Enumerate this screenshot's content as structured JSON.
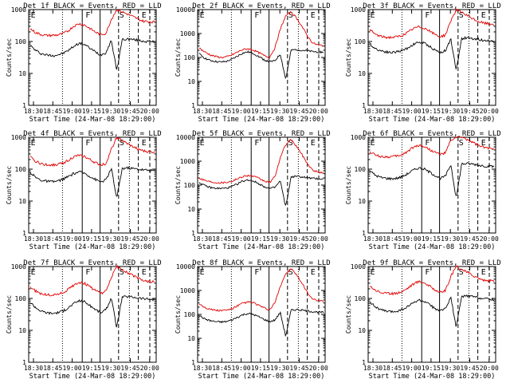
{
  "colors": {
    "events": "#000000",
    "lld": "#e00000",
    "background": "#ffffff"
  },
  "chart_data": [
    {
      "type": "line",
      "title": "Det 1f BLACK = Events, RED = LLD",
      "xlabel": "Start Time (24-Mar-08 18:29:00)",
      "ylabel": "Counts/sec",
      "yscale": "log",
      "ylim": [
        1,
        1000
      ],
      "yticks": [
        "1",
        "10",
        "100",
        "1000"
      ],
      "xticks": [
        "18:30",
        "18:45",
        "19:00",
        "19:15",
        "19:30",
        "19:45",
        "20:00"
      ],
      "grid": false,
      "markers": [
        "E",
        "F",
        "S",
        "E"
      ],
      "series": [
        {
          "name": "Events",
          "color": "#000000",
          "values": [
            75,
            52,
            42,
            38,
            36,
            38,
            42,
            52,
            70,
            88,
            82,
            62,
            48,
            38,
            45,
            110,
            12,
            115,
            120,
            115,
            110,
            102,
            100,
            98
          ]
        },
        {
          "name": "LLD",
          "color": "#e00000",
          "values": [
            250,
            190,
            165,
            155,
            155,
            160,
            175,
            215,
            300,
            360,
            330,
            260,
            200,
            165,
            180,
            500,
            1000,
            850,
            720,
            600,
            500,
            430,
            420,
            410
          ]
        }
      ]
    },
    {
      "type": "line",
      "title": "Det 2f BLACK = Events, RED = LLD",
      "xlabel": "Start Time (24-Mar-08 18:29:00)",
      "ylabel": "Counts/sec",
      "yscale": "log",
      "ylim": [
        1,
        10000
      ],
      "yticks": [
        "1",
        "10",
        "100",
        "1000",
        "10000"
      ],
      "xticks": [
        "18:30",
        "18:45",
        "19:00",
        "19:15",
        "19:30",
        "19:45",
        "20:00"
      ],
      "grid": false,
      "markers": [
        "E",
        "F",
        "S",
        "E"
      ],
      "series": [
        {
          "name": "Events",
          "color": "#000000",
          "values": [
            140,
            95,
            75,
            68,
            64,
            68,
            82,
            110,
            150,
            170,
            150,
            110,
            80,
            65,
            72,
            140,
            12,
            200,
            215,
            200,
            190,
            175,
            170,
            165
          ]
        },
        {
          "name": "LLD",
          "color": "#e00000",
          "values": [
            250,
            170,
            130,
            110,
            100,
            105,
            125,
            165,
            210,
            230,
            205,
            160,
            120,
            100,
            250,
            1500,
            5500,
            8000,
            4500,
            2000,
            800,
            400,
            330,
            310
          ]
        }
      ]
    },
    {
      "type": "line",
      "title": "Det 3f BLACK = Events, RED = LLD",
      "xlabel": "Start Time (24-Mar-08 18:29:00)",
      "ylabel": "Counts/sec",
      "yscale": "log",
      "ylim": [
        1,
        1000
      ],
      "yticks": [
        "1",
        "10",
        "100",
        "1000"
      ],
      "xticks": [
        "18:30",
        "18:45",
        "19:00",
        "19:15",
        "19:30",
        "19:45",
        "20:00"
      ],
      "grid": false,
      "markers": [
        "E",
        "F",
        "S",
        "E"
      ],
      "series": [
        {
          "name": "Events",
          "color": "#000000",
          "values": [
            85,
            60,
            52,
            48,
            45,
            48,
            52,
            62,
            80,
            95,
            90,
            72,
            55,
            45,
            52,
            120,
            12,
            125,
            130,
            125,
            118,
            110,
            105,
            100
          ]
        },
        {
          "name": "LLD",
          "color": "#e00000",
          "values": [
            230,
            170,
            145,
            135,
            135,
            140,
            155,
            190,
            250,
            290,
            270,
            215,
            170,
            140,
            160,
            450,
            1000,
            800,
            650,
            520,
            430,
            380,
            360,
            350
          ]
        }
      ]
    },
    {
      "type": "line",
      "title": "Det 4f BLACK = Events, RED = LLD",
      "xlabel": "Start Time (24-Mar-08 18:29:00)",
      "ylabel": "Counts/sec",
      "yscale": "log",
      "ylim": [
        1,
        1000
      ],
      "yticks": [
        "1",
        "10",
        "100",
        "1000"
      ],
      "xticks": [
        "18:30",
        "18:45",
        "19:00",
        "19:15",
        "19:30",
        "19:45",
        "20:00"
      ],
      "grid": false,
      "markers": [
        "E",
        "F",
        "S",
        "E"
      ],
      "series": [
        {
          "name": "Events",
          "color": "#000000",
          "values": [
            80,
            55,
            45,
            42,
            40,
            42,
            48,
            58,
            72,
            82,
            75,
            60,
            48,
            40,
            46,
            105,
            12,
            105,
            110,
            105,
            100,
            95,
            92,
            90
          ]
        },
        {
          "name": "LLD",
          "color": "#e00000",
          "values": [
            240,
            175,
            148,
            138,
            135,
            140,
            155,
            190,
            240,
            270,
            250,
            200,
            160,
            135,
            150,
            420,
            1000,
            780,
            620,
            500,
            420,
            370,
            350,
            340
          ]
        }
      ]
    },
    {
      "type": "line",
      "title": "Det 5f BLACK = Events, RED = LLD",
      "xlabel": "Start Time (24-Mar-08 18:29:00)",
      "ylabel": "Counts/sec",
      "yscale": "log",
      "ylim": [
        1,
        10000
      ],
      "yticks": [
        "1",
        "10",
        "100",
        "1000",
        "10000"
      ],
      "xticks": [
        "18:30",
        "18:45",
        "19:00",
        "19:15",
        "19:30",
        "19:45",
        "20:00"
      ],
      "grid": false,
      "markers": [
        "E",
        "F",
        "S",
        "E"
      ],
      "series": [
        {
          "name": "Events",
          "color": "#000000",
          "values": [
            130,
            95,
            80,
            74,
            72,
            75,
            85,
            110,
            145,
            165,
            150,
            115,
            88,
            72,
            80,
            150,
            12,
            220,
            235,
            220,
            205,
            190,
            185,
            180
          ]
        },
        {
          "name": "LLD",
          "color": "#e00000",
          "values": [
            200,
            160,
            140,
            130,
            128,
            132,
            145,
            180,
            230,
            255,
            235,
            190,
            150,
            128,
            220,
            1400,
            5000,
            8000,
            4200,
            1900,
            800,
            420,
            350,
            330
          ]
        }
      ]
    },
    {
      "type": "line",
      "title": "Det 6f BLACK = Events, RED = LLD",
      "xlabel": "Start Time (24-Mar-08 18:29:00)",
      "ylabel": "Counts/sec",
      "yscale": "log",
      "ylim": [
        1,
        1000
      ],
      "yticks": [
        "1",
        "10",
        "100",
        "1000"
      ],
      "xticks": [
        "18:30",
        "18:45",
        "19:00",
        "19:15",
        "19:30",
        "19:45",
        "20:00"
      ],
      "grid": false,
      "markers": [
        "E",
        "F",
        "S",
        "E"
      ],
      "series": [
        {
          "name": "Events",
          "color": "#000000",
          "values": [
            90,
            65,
            55,
            52,
            50,
            52,
            58,
            72,
            92,
            110,
            102,
            82,
            65,
            52,
            60,
            140,
            12,
            145,
            150,
            145,
            135,
            128,
            122,
            120
          ]
        },
        {
          "name": "LLD",
          "color": "#e00000",
          "values": [
            350,
            280,
            250,
            245,
            245,
            255,
            285,
            360,
            480,
            560,
            520,
            420,
            340,
            290,
            320,
            800,
            1000,
            1000,
            850,
            700,
            560,
            480,
            450,
            440
          ]
        }
      ]
    },
    {
      "type": "line",
      "title": "Det 7f BLACK = Events, RED = LLD",
      "xlabel": "Start Time (24-Mar-08 18:29:00)",
      "ylabel": "Counts/sec",
      "yscale": "log",
      "ylim": [
        1,
        1000
      ],
      "yticks": [
        "1",
        "10",
        "100",
        "1000"
      ],
      "xticks": [
        "18:30",
        "18:45",
        "19:00",
        "19:15",
        "19:30",
        "19:45",
        "20:00"
      ],
      "grid": false,
      "markers": [
        "E",
        "F",
        "S",
        "E"
      ],
      "series": [
        {
          "name": "Events",
          "color": "#000000",
          "values": [
            75,
            52,
            40,
            36,
            34,
            36,
            40,
            50,
            68,
            85,
            80,
            60,
            46,
            36,
            44,
            105,
            12,
            110,
            115,
            110,
            105,
            98,
            95,
            92
          ]
        },
        {
          "name": "LLD",
          "color": "#e00000",
          "values": [
            230,
            170,
            140,
            130,
            128,
            135,
            150,
            190,
            260,
            320,
            300,
            235,
            180,
            145,
            165,
            460,
            1000,
            800,
            640,
            520,
            420,
            360,
            340,
            330
          ]
        }
      ]
    },
    {
      "type": "line",
      "title": "Det 8f BLACK = Events, RED = LLD",
      "xlabel": "Start Time (24-Mar-08 18:29:00)",
      "ylabel": "Counts/sec",
      "yscale": "log",
      "ylim": [
        1,
        10000
      ],
      "yticks": [
        "1",
        "10",
        "100",
        "1000",
        "10000"
      ],
      "xticks": [
        "18:30",
        "18:45",
        "19:00",
        "19:15",
        "19:30",
        "19:45",
        "20:00"
      ],
      "grid": false,
      "markers": [
        "E",
        "F",
        "S",
        "E"
      ],
      "series": [
        {
          "name": "Events",
          "color": "#000000",
          "values": [
            90,
            65,
            55,
            50,
            48,
            50,
            58,
            75,
            95,
            110,
            100,
            80,
            62,
            50,
            58,
            120,
            12,
            150,
            160,
            150,
            140,
            130,
            125,
            120
          ]
        },
        {
          "name": "LLD",
          "color": "#e00000",
          "values": [
            280,
            200,
            165,
            150,
            145,
            150,
            170,
            220,
            290,
            330,
            310,
            240,
            185,
            150,
            300,
            1500,
            5000,
            8000,
            4500,
            2000,
            850,
            420,
            370,
            350
          ]
        }
      ]
    },
    {
      "type": "line",
      "title": "Det 9f BLACK = Events, RED = LLD",
      "xlabel": "Start Time (24-Mar-08 18:29:00)",
      "ylabel": "Counts/sec",
      "yscale": "log",
      "ylim": [
        1,
        1000
      ],
      "yticks": [
        "1",
        "10",
        "100",
        "1000"
      ],
      "xticks": [
        "18:30",
        "18:45",
        "19:00",
        "19:15",
        "19:30",
        "19:45",
        "20:00"
      ],
      "grid": false,
      "markers": [
        "E",
        "F",
        "S",
        "E"
      ],
      "series": [
        {
          "name": "Events",
          "color": "#000000",
          "values": [
            80,
            55,
            44,
            40,
            38,
            40,
            45,
            55,
            72,
            88,
            82,
            64,
            50,
            40,
            48,
            110,
            12,
            115,
            120,
            115,
            108,
            100,
            96,
            94
          ]
        },
        {
          "name": "LLD",
          "color": "#e00000",
          "values": [
            250,
            185,
            155,
            145,
            140,
            148,
            165,
            210,
            280,
            340,
            315,
            250,
            190,
            155,
            175,
            480,
            1000,
            820,
            660,
            540,
            440,
            380,
            360,
            350
          ]
        }
      ]
    }
  ]
}
